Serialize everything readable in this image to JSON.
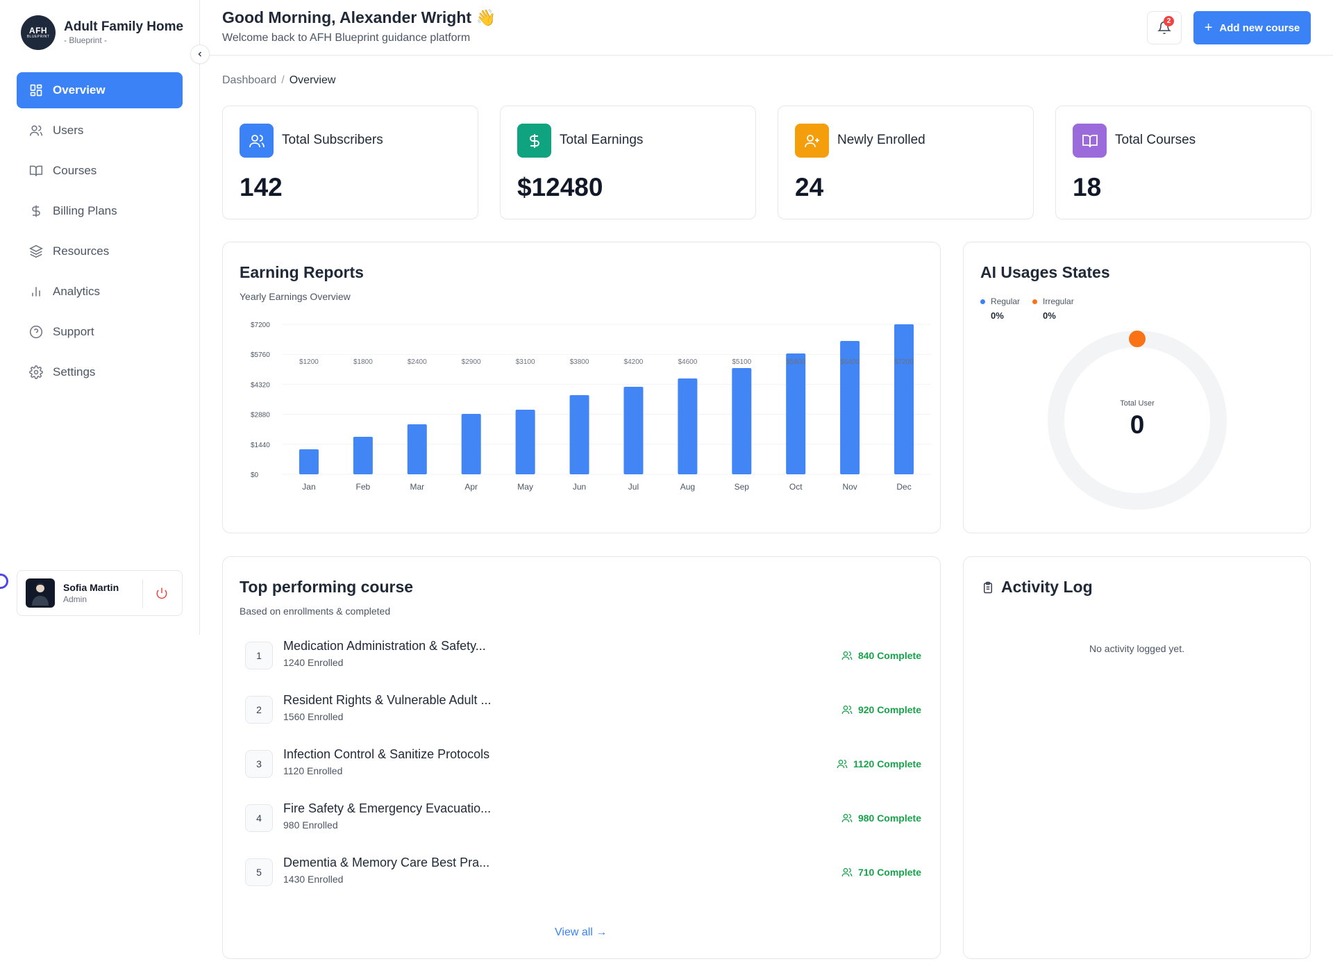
{
  "brand": {
    "logo_line1": "AFH",
    "logo_line2": "BLUEPRINT",
    "title": "Adult Family Home",
    "subtitle": "- Blueprint -"
  },
  "sidebar": {
    "items": [
      {
        "label": "Overview",
        "icon": "grid-icon",
        "active": true
      },
      {
        "label": "Users",
        "icon": "users-icon",
        "active": false
      },
      {
        "label": "Courses",
        "icon": "book-icon",
        "active": false
      },
      {
        "label": "Billing Plans",
        "icon": "dollar-icon",
        "active": false
      },
      {
        "label": "Resources",
        "icon": "layers-icon",
        "active": false
      },
      {
        "label": "Analytics",
        "icon": "bar-chart-icon",
        "active": false
      },
      {
        "label": "Support",
        "icon": "help-circle-icon",
        "active": false
      },
      {
        "label": "Settings",
        "icon": "gear-icon",
        "active": false
      }
    ],
    "user": {
      "name": "Sofia Martin",
      "role": "Admin"
    }
  },
  "header": {
    "greeting": "Good Morning, Alexander Wright 👋",
    "welcome": "Welcome back to AFH Blueprint guidance platform",
    "notification_count": "2",
    "add_button_label": "Add new course"
  },
  "breadcrumb": {
    "root": "Dashboard",
    "separator": "/",
    "current": "Overview"
  },
  "stats": [
    {
      "label": "Total Subscribers",
      "value": "142",
      "color": "#3b82f6",
      "icon": "users-icon"
    },
    {
      "label": "Total Earnings",
      "value": "$12480",
      "color": "#10a37f",
      "icon": "dollar-icon"
    },
    {
      "label": "Newly Enrolled",
      "value": "24",
      "color": "#f59e0b",
      "icon": "user-plus-icon"
    },
    {
      "label": "Total Courses",
      "value": "18",
      "color": "#9b6bdc",
      "icon": "book-open-icon"
    }
  ],
  "earning_reports": {
    "title": "Earning Reports",
    "subtitle": "Yearly Earnings Overview"
  },
  "chart_data": {
    "type": "bar",
    "categories": [
      "Jan",
      "Feb",
      "Mar",
      "Apr",
      "May",
      "Jun",
      "Jul",
      "Aug",
      "Sep",
      "Oct",
      "Nov",
      "Dec"
    ],
    "values": [
      1200,
      1800,
      2400,
      2900,
      3100,
      3800,
      4200,
      4600,
      5100,
      5800,
      6400,
      7200
    ],
    "value_labels": [
      "$1200",
      "$1800",
      "$2400",
      "$2900",
      "$3100",
      "$3800",
      "$4200",
      "$4600",
      "$5100",
      "$5800",
      "$6400",
      "$7200"
    ],
    "yticks": [
      0,
      1440,
      2880,
      4320,
      5760,
      7200
    ],
    "ytick_labels": [
      "$0",
      "$1440",
      "$2880",
      "$4320",
      "$5760",
      "$7200"
    ],
    "ylim": [
      0,
      7200
    ],
    "bar_color": "#4285f4",
    "grid": true
  },
  "ai_usage": {
    "title": "AI Usages States",
    "legend": [
      {
        "label": "Regular",
        "value": "0%",
        "color": "#3b82f6"
      },
      {
        "label": "Irregular",
        "value": "0%",
        "color": "#f97316"
      }
    ],
    "center_label": "Total User",
    "center_value": "0"
  },
  "top_courses": {
    "title": "Top performing course",
    "subtitle": "Based on enrollments & completed",
    "items": [
      {
        "rank": "1",
        "name": "Medication Administration & Safety...",
        "enrolled": "1240 Enrolled",
        "complete": "840 Complete"
      },
      {
        "rank": "2",
        "name": "Resident Rights & Vulnerable Adult ...",
        "enrolled": "1560 Enrolled",
        "complete": "920 Complete"
      },
      {
        "rank": "3",
        "name": "Infection Control & Sanitize Protocols",
        "enrolled": "1120 Enrolled",
        "complete": "1120 Complete"
      },
      {
        "rank": "4",
        "name": "Fire Safety & Emergency Evacuatio...",
        "enrolled": "980 Enrolled",
        "complete": "980 Complete"
      },
      {
        "rank": "5",
        "name": "Dementia & Memory Care Best Pra...",
        "enrolled": "1430 Enrolled",
        "complete": "710 Complete"
      }
    ],
    "view_all_label": "View all →"
  },
  "activity_log": {
    "title": "Activity Log",
    "empty_message": "No activity logged yet."
  }
}
